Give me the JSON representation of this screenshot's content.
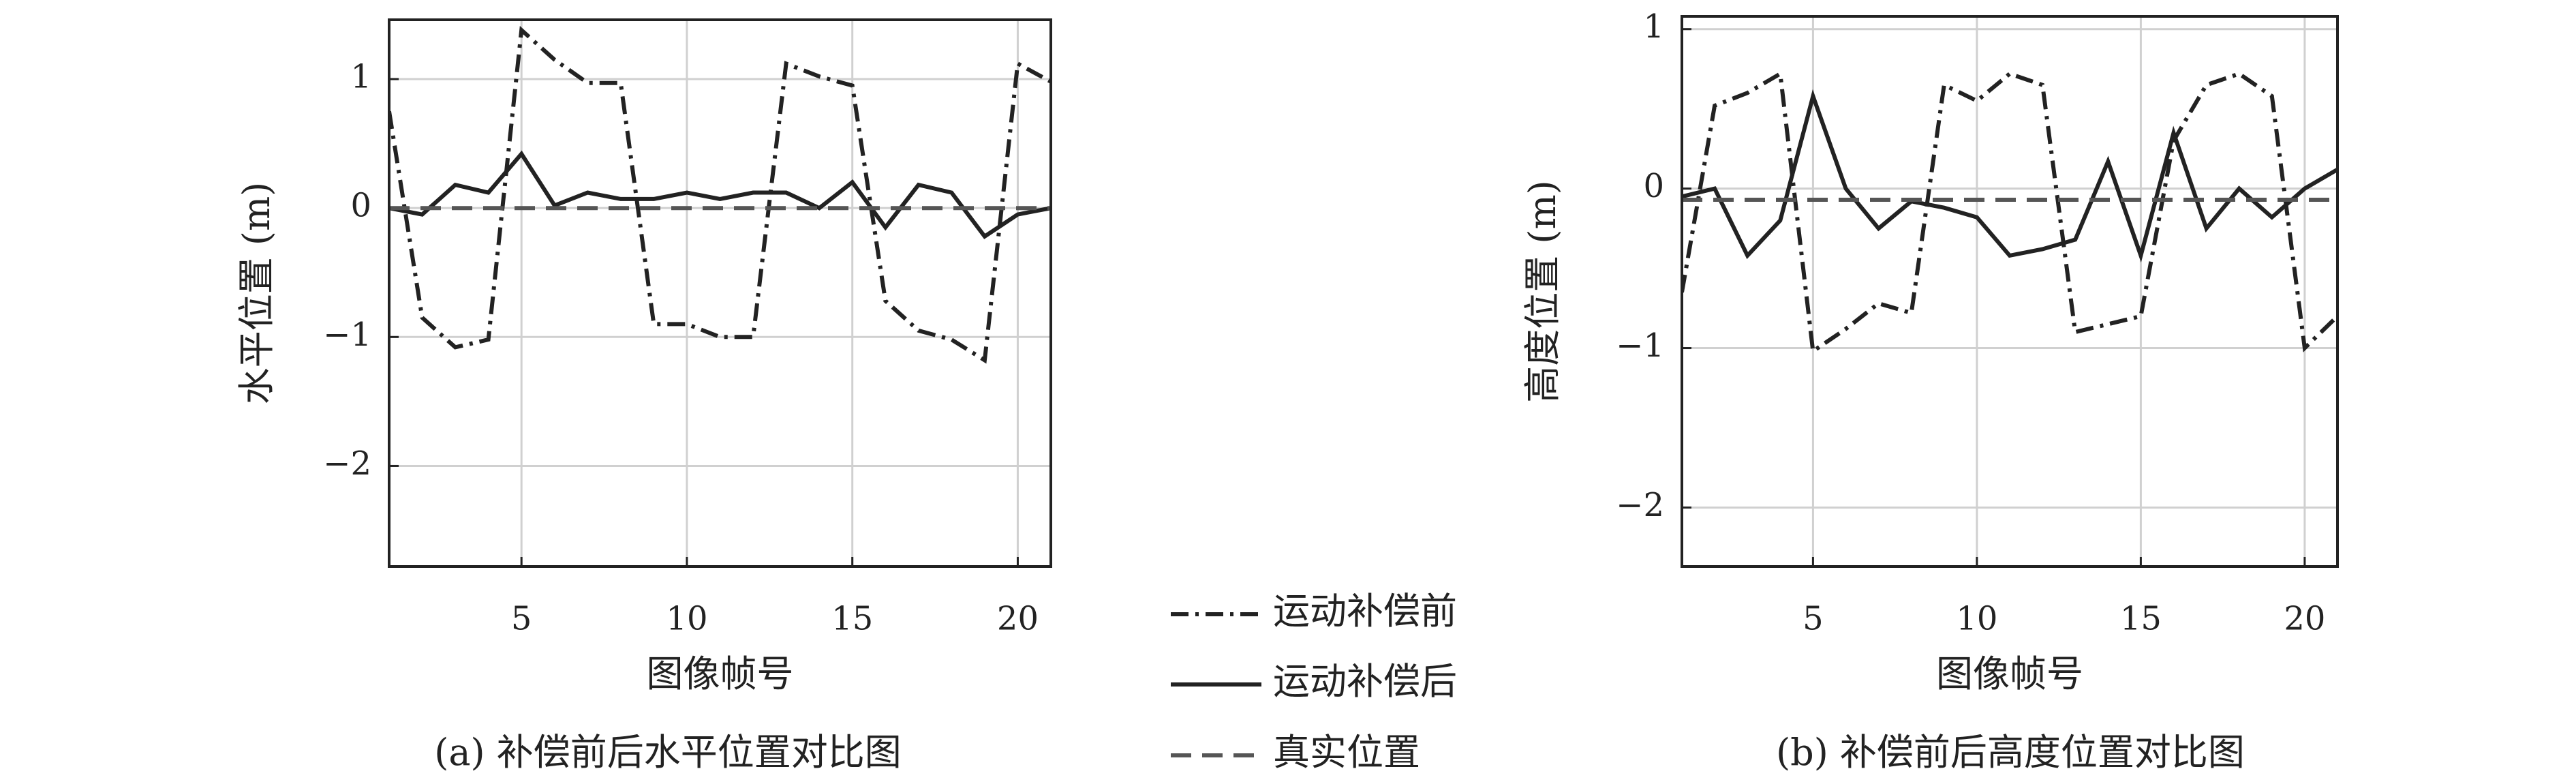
{
  "chart_data": [
    {
      "type": "line",
      "caption": "(a) 补偿前后水平位置对比图",
      "xlabel": "图像帧号",
      "ylabel": "水平位置 (m)",
      "x": [
        1,
        2,
        3,
        4,
        5,
        6,
        7,
        8,
        9,
        10,
        11,
        12,
        13,
        14,
        15,
        16,
        17,
        18,
        19,
        20,
        21
      ],
      "xlim": [
        1,
        21
      ],
      "xticks": [
        5,
        10,
        15,
        20
      ],
      "ylim": [
        -2.78,
        1.46
      ],
      "yticks": [
        1,
        0,
        {
          "value": -1,
          "label": "−1"
        },
        {
          "value": -2,
          "label": "−2"
        }
      ],
      "grid": true,
      "series": [
        {
          "name": "运动补偿前",
          "color": "#222222",
          "style": "dashdot",
          "values": [
            0.75,
            -0.85,
            -1.08,
            -1.02,
            1.38,
            1.15,
            0.97,
            0.97,
            -0.9,
            -0.9,
            -1.0,
            -1.0,
            1.12,
            1.02,
            0.95,
            -0.72,
            -0.95,
            -1.02,
            -1.18,
            1.12,
            0.98
          ]
        },
        {
          "name": "运动补偿后",
          "color": "#222222",
          "style": "solid",
          "values": [
            0.0,
            -0.05,
            0.18,
            0.12,
            0.42,
            0.02,
            0.12,
            0.07,
            0.07,
            0.12,
            0.07,
            0.12,
            0.12,
            0.0,
            0.2,
            -0.15,
            0.18,
            0.12,
            -0.22,
            -0.05,
            0.0
          ]
        },
        {
          "name": "真实位置",
          "color": "#555555",
          "style": "dashed",
          "values": [
            0,
            0,
            0,
            0,
            0,
            0,
            0,
            0,
            0,
            0,
            0,
            0,
            0,
            0,
            0,
            0,
            0,
            0,
            0,
            0,
            0
          ]
        }
      ]
    },
    {
      "type": "line",
      "caption": "(b) 补偿前后高度位置对比图",
      "xlabel": "图像帧号",
      "ylabel": "高度位置 (m)",
      "x": [
        1,
        2,
        3,
        4,
        5,
        6,
        7,
        8,
        9,
        10,
        11,
        12,
        13,
        14,
        15,
        16,
        17,
        18,
        19,
        20,
        21
      ],
      "xlim": [
        1,
        21
      ],
      "xticks": [
        5,
        10,
        15,
        20
      ],
      "ylim": [
        -2.37,
        1.08
      ],
      "yticks": [
        1,
        0,
        {
          "value": -1,
          "label": "−1"
        },
        {
          "value": -2,
          "label": "−2"
        }
      ],
      "grid": true,
      "series": [
        {
          "name": "运动补偿前",
          "color": "#222222",
          "style": "dashdot",
          "values": [
            -0.65,
            0.52,
            0.6,
            0.72,
            -1.02,
            -0.88,
            -0.72,
            -0.78,
            0.65,
            0.55,
            0.72,
            0.65,
            -0.9,
            -0.85,
            -0.8,
            0.3,
            0.65,
            0.72,
            0.58,
            -1.0,
            -0.8
          ]
        },
        {
          "name": "运动补偿后",
          "color": "#222222",
          "style": "solid",
          "values": [
            -0.05,
            0.0,
            -0.42,
            -0.2,
            0.58,
            0.0,
            -0.25,
            -0.08,
            -0.12,
            -0.18,
            -0.42,
            -0.38,
            -0.32,
            0.17,
            -0.42,
            0.35,
            -0.25,
            0.0,
            -0.18,
            0.0,
            0.12
          ]
        },
        {
          "name": "真实位置",
          "color": "#555555",
          "style": "dashed",
          "values": [
            -0.07,
            -0.07,
            -0.07,
            -0.07,
            -0.07,
            -0.07,
            -0.07,
            -0.07,
            -0.07,
            -0.07,
            -0.07,
            -0.07,
            -0.07,
            -0.07,
            -0.07,
            -0.07,
            -0.07,
            -0.07,
            -0.07,
            -0.07,
            -0.07
          ]
        }
      ]
    }
  ]
}
